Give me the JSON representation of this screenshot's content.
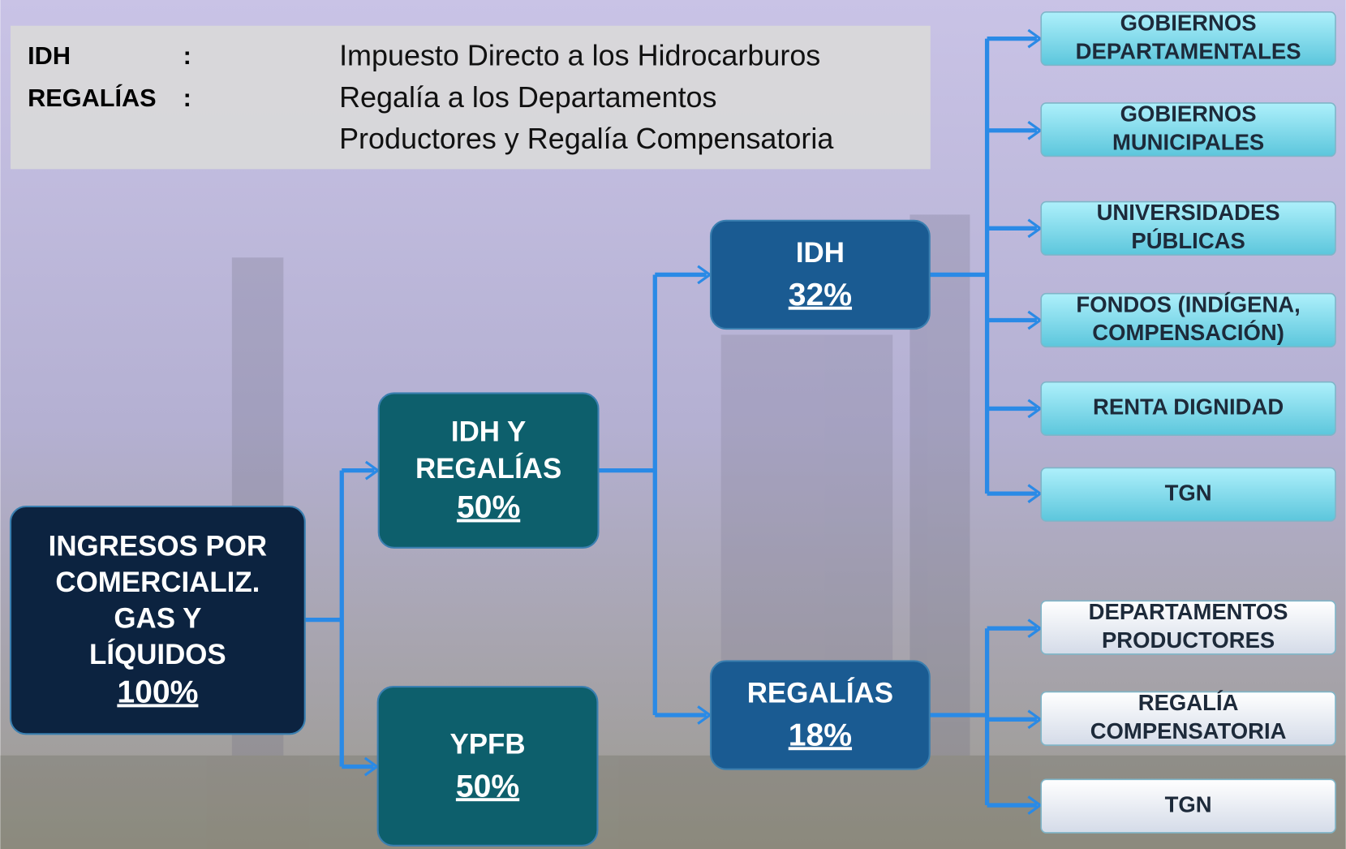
{
  "legend": [
    {
      "term": "IDH",
      "separator": ":",
      "definition": [
        "Impuesto Directo a los Hidrocarburos"
      ]
    },
    {
      "term": "REGALÍAS",
      "separator": ":",
      "definition": [
        "Regalía a los Departamentos",
        "Productores y Regalía Compensatoria"
      ]
    }
  ],
  "nodes": [
    {
      "lines": [
        "INGRESOS POR",
        "COMERCIALIZ.",
        "GAS  Y",
        "LÍQUIDOS"
      ],
      "percent": "100%"
    },
    {
      "lines": [
        "IDH Y",
        "REGALÍAS"
      ],
      "percent": "50%"
    },
    {
      "lines": [
        "YPFB"
      ],
      "percent": "50%"
    },
    {
      "lines": [
        "IDH"
      ],
      "percent": "32%"
    },
    {
      "lines": [
        "REGALÍAS"
      ],
      "percent": "18%"
    }
  ],
  "idh_recipients": [
    {
      "lines": [
        "GOBIERNOS",
        "DEPARTAMENTALES"
      ]
    },
    {
      "lines": [
        "GOBIERNOS",
        "MUNICIPALES"
      ]
    },
    {
      "lines": [
        "UNIVERSIDADES",
        "PÚBLICAS"
      ]
    },
    {
      "lines": [
        "FONDOS (INDÍGENA,",
        "COMPENSACIÓN)"
      ]
    },
    {
      "lines": [
        "RENTA DIGNIDAD"
      ]
    },
    {
      "lines": [
        "TGN"
      ]
    }
  ],
  "regalias_recipients": [
    {
      "lines": [
        "DEPARTAMENTOS",
        "PRODUCTORES"
      ]
    },
    {
      "lines": [
        "REGALÍA",
        "COMPENSATORIA"
      ]
    },
    {
      "lines": [
        "TGN"
      ]
    }
  ]
}
